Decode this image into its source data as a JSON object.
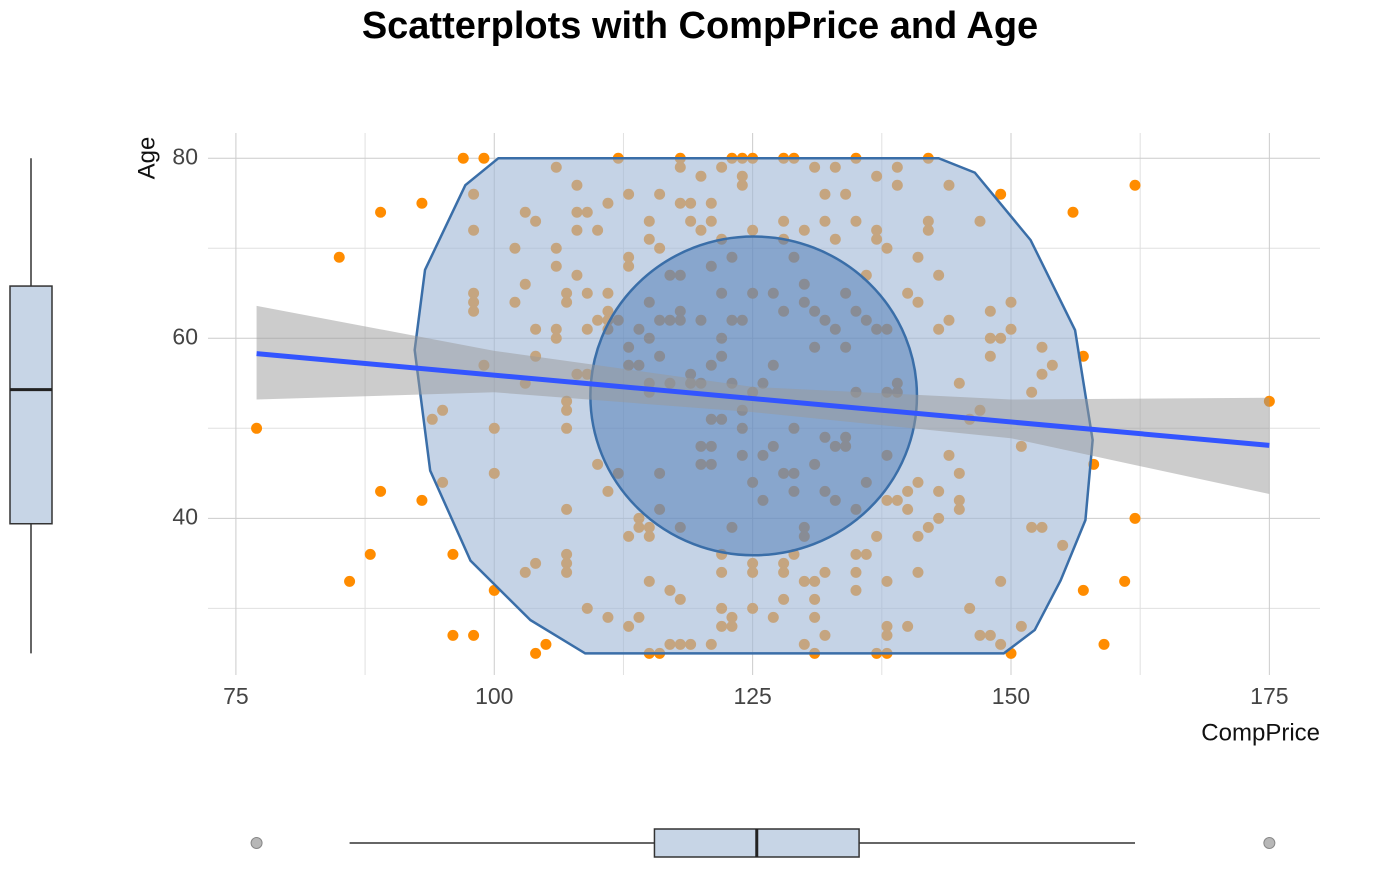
{
  "chart_data": {
    "type": "scatter",
    "title": "Scatterplots with CompPrice and Age",
    "x_label": "CompPrice",
    "y_label": "Age",
    "color": "#ff8c00",
    "x": [
      77,
      85,
      86,
      88,
      89,
      89,
      93,
      93,
      94,
      95,
      95,
      96,
      96,
      97,
      98,
      98,
      98,
      98,
      98,
      98,
      99,
      99,
      100,
      100,
      100,
      102,
      102,
      103,
      103,
      103,
      103,
      104,
      104,
      104,
      104,
      104,
      105,
      106,
      106,
      106,
      106,
      106,
      107,
      107,
      107,
      107,
      107,
      107,
      107,
      107,
      107,
      108,
      108,
      108,
      108,
      108,
      109,
      109,
      109,
      109,
      109,
      110,
      110,
      110,
      111,
      111,
      111,
      111,
      111,
      111,
      111,
      112,
      112,
      112,
      113,
      113,
      113,
      113,
      113,
      113,
      113,
      114,
      114,
      114,
      114,
      114,
      115,
      115,
      115,
      115,
      115,
      115,
      115,
      115,
      115,
      115,
      116,
      116,
      116,
      116,
      116,
      116,
      116,
      117,
      117,
      117,
      117,
      117,
      118,
      118,
      118,
      118,
      118,
      118,
      118,
      118,
      118,
      119,
      119,
      119,
      119,
      119,
      120,
      120,
      120,
      120,
      120,
      120,
      121,
      121,
      121,
      121,
      121,
      121,
      121,
      121,
      122,
      122,
      122,
      122,
      122,
      122,
      122,
      122,
      122,
      122,
      123,
      123,
      123,
      123,
      123,
      123,
      123,
      124,
      124,
      124,
      124,
      124,
      124,
      124,
      125,
      125,
      125,
      125,
      125,
      125,
      125,
      125,
      126,
      126,
      126,
      127,
      127,
      127,
      127,
      128,
      128,
      128,
      128,
      128,
      128,
      128,
      128,
      129,
      129,
      129,
      129,
      129,
      129,
      130,
      130,
      130,
      130,
      130,
      130,
      130,
      131,
      131,
      131,
      131,
      131,
      131,
      131,
      131,
      132,
      132,
      132,
      132,
      132,
      132,
      132,
      133,
      133,
      133,
      133,
      133,
      134,
      134,
      134,
      134,
      134,
      135,
      135,
      135,
      135,
      135,
      135,
      135,
      135,
      136,
      136,
      136,
      136,
      137,
      137,
      137,
      137,
      137,
      137,
      138,
      138,
      138,
      138,
      138,
      138,
      138,
      138,
      138,
      139,
      139,
      139,
      139,
      139,
      140,
      140,
      140,
      140,
      141,
      141,
      141,
      141,
      141,
      142,
      142,
      142,
      142,
      143,
      143,
      143,
      143,
      144,
      144,
      144,
      145,
      145,
      145,
      145,
      146,
      146,
      147,
      147,
      147,
      148,
      148,
      148,
      148,
      149,
      149,
      149,
      149,
      150,
      150,
      150,
      151,
      151,
      152,
      152,
      153,
      153,
      153,
      154,
      155,
      156,
      157,
      157,
      158,
      159,
      161,
      162,
      162,
      175
    ],
    "values": [
      50,
      69,
      33,
      36,
      74,
      43,
      75,
      42,
      51,
      52,
      44,
      36,
      27,
      80,
      27,
      76,
      72,
      65,
      64,
      63,
      80,
      57,
      50,
      45,
      32,
      64,
      70,
      74,
      66,
      55,
      34,
      73,
      61,
      58,
      35,
      25,
      26,
      79,
      70,
      68,
      61,
      60,
      65,
      64,
      53,
      52,
      50,
      41,
      36,
      35,
      34,
      77,
      74,
      72,
      67,
      56,
      74,
      65,
      61,
      56,
      30,
      72,
      62,
      46,
      75,
      65,
      63,
      62,
      61,
      43,
      29,
      80,
      62,
      45,
      76,
      69,
      68,
      59,
      57,
      38,
      28,
      61,
      57,
      40,
      39,
      29,
      73,
      71,
      64,
      60,
      55,
      54,
      39,
      38,
      33,
      25,
      76,
      70,
      62,
      58,
      45,
      41,
      25,
      67,
      62,
      55,
      32,
      26,
      80,
      79,
      75,
      67,
      63,
      62,
      39,
      31,
      26,
      75,
      73,
      56,
      55,
      26,
      78,
      72,
      62,
      55,
      48,
      46,
      75,
      73,
      68,
      57,
      51,
      48,
      46,
      26,
      79,
      71,
      65,
      60,
      58,
      51,
      36,
      34,
      30,
      28,
      80,
      69,
      62,
      55,
      39,
      29,
      28,
      80,
      78,
      77,
      62,
      52,
      50,
      47,
      80,
      72,
      65,
      54,
      44,
      35,
      34,
      30,
      55,
      47,
      42,
      65,
      57,
      48,
      29,
      80,
      73,
      71,
      63,
      45,
      35,
      34,
      31,
      80,
      69,
      50,
      45,
      43,
      36,
      72,
      66,
      64,
      39,
      38,
      33,
      26,
      79,
      63,
      59,
      46,
      33,
      31,
      29,
      25,
      76,
      73,
      62,
      49,
      43,
      34,
      27,
      79,
      71,
      61,
      48,
      42,
      76,
      65,
      59,
      49,
      48,
      80,
      73,
      63,
      54,
      41,
      36,
      34,
      32,
      67,
      62,
      44,
      36,
      78,
      72,
      71,
      61,
      38,
      25,
      70,
      61,
      54,
      47,
      42,
      33,
      28,
      27,
      25,
      79,
      77,
      55,
      54,
      42,
      65,
      43,
      41,
      28,
      69,
      64,
      44,
      38,
      34,
      80,
      73,
      72,
      39,
      67,
      61,
      43,
      40,
      77,
      62,
      47,
      55,
      45,
      42,
      41,
      51,
      30,
      73,
      52,
      27,
      63,
      60,
      58,
      27,
      76,
      60,
      33,
      26,
      64,
      61,
      25,
      48,
      28,
      54,
      39,
      59,
      56,
      39,
      57,
      37,
      74,
      58,
      32,
      46,
      26,
      33,
      77,
      40,
      53
    ],
    "fit": {
      "color": "#3355ff",
      "x": [
        77,
        175
      ],
      "values": [
        58.3,
        48.1
      ]
    },
    "band": {
      "color": "#999999",
      "x": [
        77,
        100,
        125,
        150,
        175
      ],
      "lower": [
        53.2,
        54.0,
        51.8,
        48.9,
        42.7
      ],
      "upper": [
        63.6,
        58.6,
        54.6,
        53.2,
        53.4
      ]
    },
    "hull": {
      "color": "#9fb6d6",
      "x": [
        100.4,
        143,
        146.5,
        151.9,
        156.2,
        157.9,
        157.2,
        154.8,
        152.3,
        149.3,
        108.8,
        103.5,
        97.7,
        93.8,
        92.3,
        93.3,
        97.2
      ],
      "y": [
        80,
        80,
        78.4,
        70.9,
        60.9,
        48.7,
        39.8,
        33.1,
        27.6,
        25,
        25,
        28.7,
        35.3,
        45.3,
        58.7,
        67.6,
        77
      ]
    },
    "ellipse": {
      "color": "#3f6fb0",
      "cx": 125.1,
      "cy": 53.6,
      "rx": 15.8,
      "ry": 17.7
    },
    "x_box": {
      "whislo": 86,
      "q1": 115.5,
      "med": 125.4,
      "q3": 135.3,
      "whishi": 162,
      "fliers": [
        77,
        175
      ]
    },
    "y_box": {
      "whislo": 25,
      "q1": 39.4,
      "med": 54.3,
      "q3": 65.8,
      "whishi": 80
    },
    "xlim": [
      72.3,
      179.9
    ],
    "ylim": [
      22.6,
      82.8
    ],
    "xticks": [
      75,
      100,
      125,
      150,
      175
    ],
    "yticks": [
      40,
      60,
      80
    ],
    "minor_xticks": [
      87.5,
      112.5,
      137.5,
      162.5
    ],
    "minor_yticks": [
      30,
      50,
      70
    ],
    "grid": true
  }
}
